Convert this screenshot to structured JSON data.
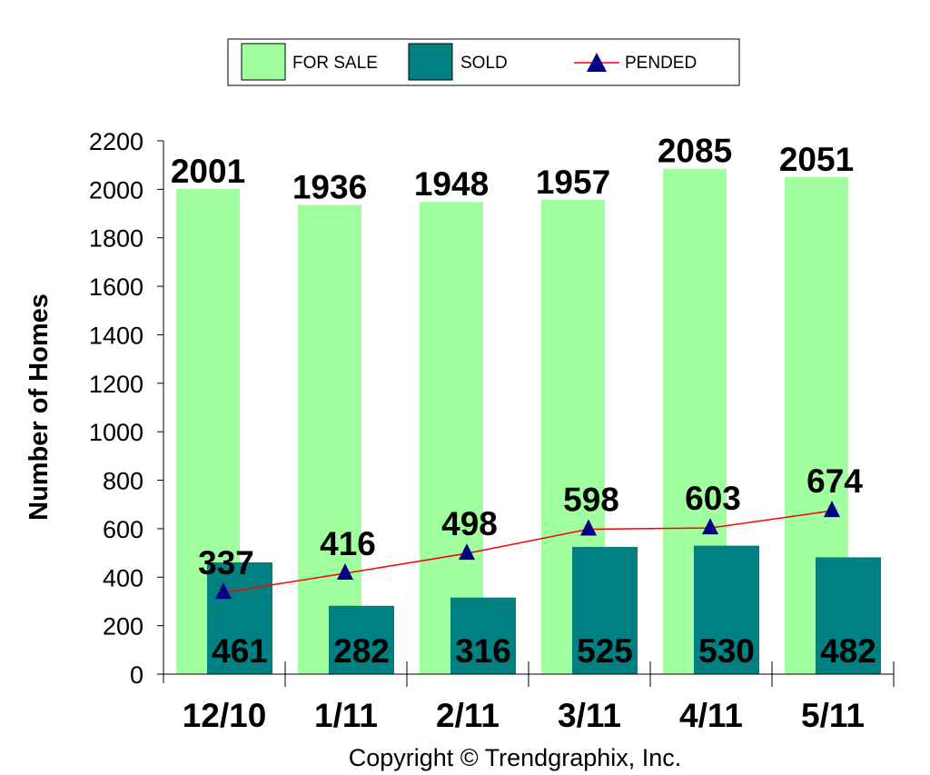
{
  "chart_data": {
    "type": "bar",
    "categories": [
      "12/10",
      "1/11",
      "2/11",
      "3/11",
      "4/11",
      "5/11"
    ],
    "series": [
      {
        "name": "FOR SALE",
        "kind": "bar",
        "color": "#a2ff9f",
        "values": [
          2001,
          1936,
          1948,
          1957,
          2085,
          2051
        ]
      },
      {
        "name": "SOLD",
        "kind": "bar",
        "color": "#008080",
        "values": [
          461,
          282,
          316,
          525,
          530,
          482
        ]
      },
      {
        "name": "PENDED",
        "kind": "line",
        "color": "#ff0000",
        "marker": "triangle",
        "marker_color": "#000080",
        "values": [
          337,
          416,
          498,
          598,
          603,
          674
        ]
      }
    ],
    "ylabel": "Number of Homes",
    "ylim": [
      0,
      2200
    ],
    "yticks": [
      "0",
      "200",
      "400",
      "600",
      "800",
      "1000",
      "1200",
      "1400",
      "1600",
      "1800",
      "2000",
      "2200"
    ],
    "legend_position": "top-center",
    "grid": false
  },
  "footer": {
    "copyright": "Copyright © Trendgraphix, Inc."
  }
}
